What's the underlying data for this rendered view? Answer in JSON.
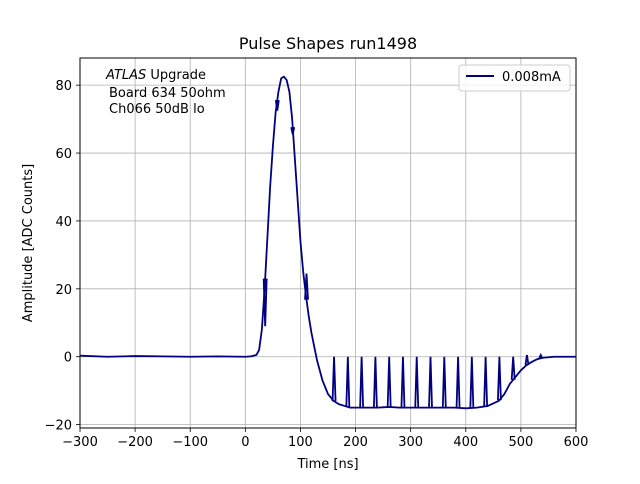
{
  "chart_data": {
    "type": "line",
    "title": "Pulse Shapes run1498",
    "xlabel": "Time [ns]",
    "ylabel": "Amplitude [ADC Counts]",
    "xlim": [
      -300,
      600
    ],
    "ylim": [
      -21,
      88
    ],
    "xticks": [
      -300,
      -200,
      -100,
      0,
      100,
      200,
      300,
      400,
      500,
      600
    ],
    "yticks": [
      -20,
      0,
      20,
      40,
      60,
      80
    ],
    "grid": true,
    "legend_position": "top-right",
    "annotation": {
      "line1_italic": "ATLAS",
      "line1_rest": " Upgrade",
      "line2": "Board 634 50ohm",
      "line3": "Ch066 50dB lo"
    },
    "series": [
      {
        "name": "0.008mA",
        "color": "#000080",
        "x": [
          -300,
          -250,
          -200,
          -150,
          -100,
          -50,
          0,
          10,
          20,
          25,
          30,
          35,
          40,
          45,
          50,
          55,
          60,
          65,
          70,
          75,
          80,
          85,
          90,
          95,
          100,
          105,
          110,
          115,
          120,
          125,
          130,
          135,
          140,
          145,
          150,
          160,
          170,
          180,
          190,
          200,
          210,
          220,
          240,
          260,
          280,
          300,
          320,
          340,
          360,
          380,
          400,
          420,
          440,
          460,
          470,
          480,
          490,
          500,
          510,
          520,
          530,
          540,
          560,
          580,
          600
        ],
        "y": [
          0.3,
          0.0,
          0.2,
          0.1,
          0.0,
          0.1,
          0.0,
          0.1,
          0.5,
          2.0,
          8.0,
          20.0,
          35.0,
          50.0,
          62.0,
          72.0,
          78.0,
          82.0,
          82.5,
          81.5,
          78.0,
          70.0,
          58.0,
          46.0,
          34.0,
          25.0,
          18.0,
          12.0,
          7.0,
          3.0,
          -1.0,
          -4.0,
          -7.0,
          -9.0,
          -11.0,
          -13.0,
          -14.0,
          -14.5,
          -15.0,
          -15.0,
          -15.0,
          -15.0,
          -15.0,
          -14.8,
          -15.0,
          -15.0,
          -15.0,
          -15.0,
          -15.0,
          -15.0,
          -15.2,
          -15.0,
          -14.5,
          -13.0,
          -11.0,
          -8.0,
          -6.0,
          -4.0,
          -2.5,
          -1.5,
          -0.7,
          -0.3,
          0.0,
          0.0,
          0.0
        ]
      }
    ],
    "spikes": [
      {
        "x": 36,
        "y": 9.0
      },
      {
        "x": 58,
        "y": 72.5
      },
      {
        "x": 86,
        "y": 65.5
      },
      {
        "x": 111,
        "y": 24.5
      },
      {
        "x": 161,
        "y": 0.0
      },
      {
        "x": 186,
        "y": 0.0
      },
      {
        "x": 211,
        "y": 0.0
      },
      {
        "x": 236,
        "y": 0.0
      },
      {
        "x": 261,
        "y": 0.0
      },
      {
        "x": 286,
        "y": 0.0
      },
      {
        "x": 311,
        "y": 0.0
      },
      {
        "x": 336,
        "y": 0.0
      },
      {
        "x": 361,
        "y": 0.0
      },
      {
        "x": 386,
        "y": 0.0
      },
      {
        "x": 411,
        "y": 0.0
      },
      {
        "x": 436,
        "y": 0.0
      },
      {
        "x": 461,
        "y": 0.0
      },
      {
        "x": 486,
        "y": 0.0
      },
      {
        "x": 511,
        "y": 0.5
      },
      {
        "x": 536,
        "y": 0.5
      }
    ]
  }
}
